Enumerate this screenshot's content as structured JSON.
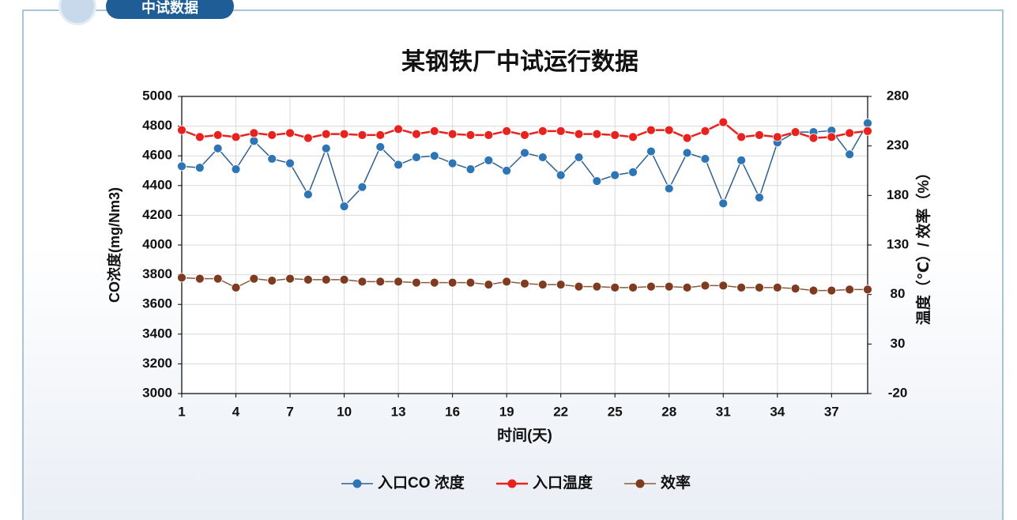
{
  "header": {
    "title": "中试数据"
  },
  "chart_data": {
    "type": "line",
    "title": "某钢铁厂中试运行数据",
    "xlabel": "时间(天)",
    "ylabel": "CO浓度(mg/Nm3)",
    "y2label": "温度（℃）/ 效率（%）",
    "x": [
      1,
      2,
      3,
      4,
      5,
      6,
      7,
      8,
      9,
      10,
      11,
      12,
      13,
      14,
      15,
      16,
      17,
      18,
      19,
      20,
      21,
      22,
      23,
      24,
      25,
      26,
      27,
      28,
      29,
      30,
      31,
      32,
      33,
      34,
      35,
      36,
      37,
      38,
      39
    ],
    "xlim": [
      1,
      39
    ],
    "xticks": [
      1,
      4,
      7,
      10,
      13,
      16,
      19,
      22,
      25,
      28,
      31,
      34,
      37
    ],
    "ylim": [
      3000,
      5000
    ],
    "yticks": [
      3000,
      3200,
      3400,
      3600,
      3800,
      4000,
      4200,
      4400,
      4600,
      4800,
      5000
    ],
    "y2lim": [
      -20,
      280
    ],
    "y2ticks": [
      -20,
      30,
      80,
      130,
      180,
      230,
      280
    ],
    "grid": true,
    "legend": "bottom",
    "series": [
      {
        "name": "入口CO 浓度",
        "color": "#2e75b6",
        "line_color": "#2f5f8f",
        "axis": "y",
        "values": [
          4530,
          4520,
          4650,
          4510,
          4700,
          4580,
          4550,
          4340,
          4650,
          4260,
          4390,
          4660,
          4540,
          4590,
          4600,
          4550,
          4510,
          4570,
          4500,
          4620,
          4590,
          4470,
          4590,
          4430,
          4470,
          4490,
          4630,
          4380,
          4620,
          4580,
          4280,
          4570,
          4320,
          4690,
          4760,
          4760,
          4770,
          4610,
          4820
        ]
      },
      {
        "name": "入口温度",
        "color": "#e8231e",
        "line_color": "#e8231e",
        "axis": "y2",
        "values": [
          246,
          239,
          241,
          239,
          243,
          241,
          243,
          238,
          242,
          242,
          241,
          241,
          247,
          242,
          245,
          242,
          241,
          241,
          245,
          241,
          245,
          245,
          242,
          242,
          241,
          239,
          246,
          246,
          238,
          245,
          254,
          239,
          241,
          239,
          244,
          238,
          239,
          243,
          245
        ]
      },
      {
        "name": "效率",
        "color": "#7f3b20",
        "line_color": "#8a5a3c",
        "axis": "y2",
        "values": [
          97,
          96,
          96,
          87,
          96,
          94,
          96,
          95,
          95,
          95,
          93,
          93,
          93,
          92,
          92,
          92,
          92,
          90,
          93,
          91,
          90,
          90,
          88,
          88,
          87,
          87,
          88,
          88,
          87,
          89,
          89,
          87,
          87,
          87,
          86,
          84,
          84,
          85,
          85
        ]
      }
    ]
  }
}
